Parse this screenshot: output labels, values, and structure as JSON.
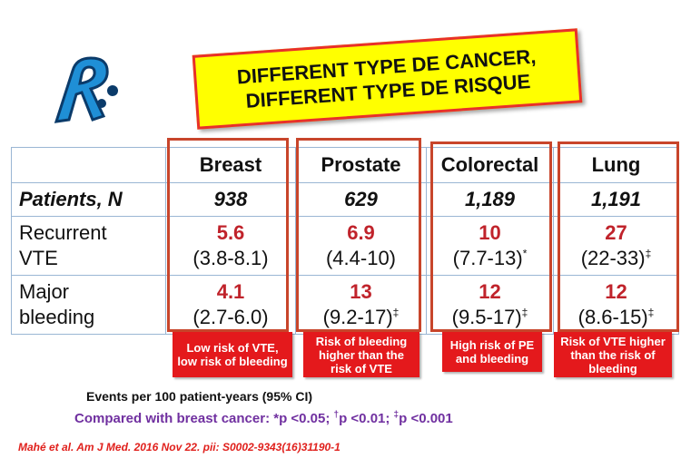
{
  "banner": {
    "line1": "DIFFERENT TYPE DE CANCER,",
    "line2": "DIFFERENT TYPE DE RISQUE"
  },
  "table": {
    "columns": [
      "Breast",
      "Prostate",
      "Colorectal",
      "Lung"
    ],
    "patients": {
      "label": "Patients, N",
      "values": [
        "938",
        "629",
        "1,189",
        "1,191"
      ]
    },
    "vte": {
      "label_l1": "Recurrent",
      "label_l2": "VTE",
      "values": [
        "5.6",
        "6.9",
        "10",
        "27"
      ],
      "ci": [
        "(3.8-8.1)",
        "(4.4-10)",
        "(7.7-13)",
        "(22-33)"
      ],
      "marks": [
        "",
        "",
        "*",
        "‡"
      ]
    },
    "bleeding": {
      "label_l1": "Major",
      "label_l2": "bleeding",
      "values": [
        "4.1",
        "13",
        "12",
        "12"
      ],
      "ci": [
        "(2.7-6.0)",
        "(9.2-17)",
        "(9.5-17)",
        "(8.6-15)"
      ],
      "marks": [
        "",
        "‡",
        "‡",
        "‡"
      ]
    }
  },
  "notes": [
    "Low risk of VTE, low risk of bleeding",
    "Risk of bleeding higher than the risk of VTE",
    "High risk of PE and bleeding",
    "Risk of VTE higher than the risk of bleeding"
  ],
  "footer": {
    "events": "Events per 100 patient-years (95% CI)",
    "compare_prefix": "Compared with breast cancer: ",
    "p1": "*p <0.05; ",
    "m2": "†",
    "p2": "p <0.01; ",
    "m3": "‡",
    "p3": "p <0.001",
    "reference": "Mahé et al. Am J Med. 2016 Nov 22. pii: S0002-9343(16)31190-1"
  },
  "colors": {
    "banner_bg": "#ffff00",
    "value_red": "#c0232b",
    "note_bg": "#e4191c",
    "compare_purple": "#7030a0"
  },
  "icons": {
    "logo": "rieti-registry-logo"
  }
}
